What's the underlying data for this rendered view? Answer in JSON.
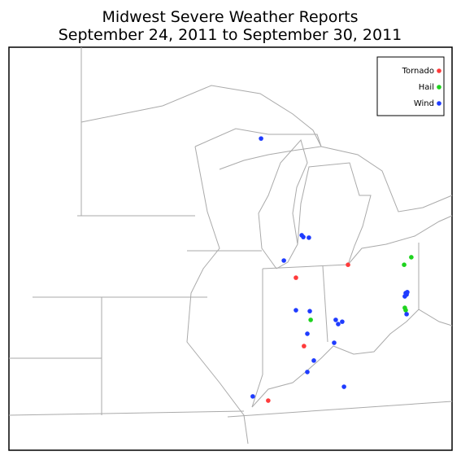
{
  "map": {
    "title_lines": [
      "Midwest Severe Weather Reports",
      "September 24, 2011 to September 30, 2011"
    ],
    "layers": [
      {
        "name": "Tornado",
        "color": "#ff3b3b",
        "points": [
          [
            41.89,
            -83.68
          ],
          [
            41.46,
            -86.01
          ],
          [
            39.19,
            -85.65
          ],
          [
            37.38,
            -87.25
          ]
        ]
      },
      {
        "name": "Hail",
        "color": "#1ed31e",
        "points": [
          [
            42.14,
            -80.85
          ],
          [
            41.89,
            -81.17
          ],
          [
            40.06,
            -85.35
          ],
          [
            40.46,
            -81.14
          ],
          [
            40.38,
            -81.1
          ]
        ]
      },
      {
        "name": "Wind",
        "color": "#1f3cff",
        "points": [
          [
            46.08,
            -87.57
          ],
          [
            42.87,
            -85.75
          ],
          [
            42.81,
            -85.68
          ],
          [
            42.79,
            -85.43
          ],
          [
            42.03,
            -86.55
          ],
          [
            40.38,
            -86.01
          ],
          [
            40.35,
            -85.39
          ],
          [
            40.06,
            -84.23
          ],
          [
            39.92,
            -84.12
          ],
          [
            40.0,
            -83.94
          ],
          [
            39.6,
            -85.5
          ],
          [
            39.3,
            -84.3
          ],
          [
            38.71,
            -85.21
          ],
          [
            38.33,
            -85.5
          ],
          [
            37.84,
            -83.86
          ],
          [
            37.52,
            -87.94
          ],
          [
            40.95,
            -81.1
          ],
          [
            40.9,
            -81.06
          ],
          [
            40.84,
            -81.14
          ],
          [
            40.98,
            -81.03
          ],
          [
            40.25,
            -81.06
          ]
        ]
      }
    ]
  }
}
